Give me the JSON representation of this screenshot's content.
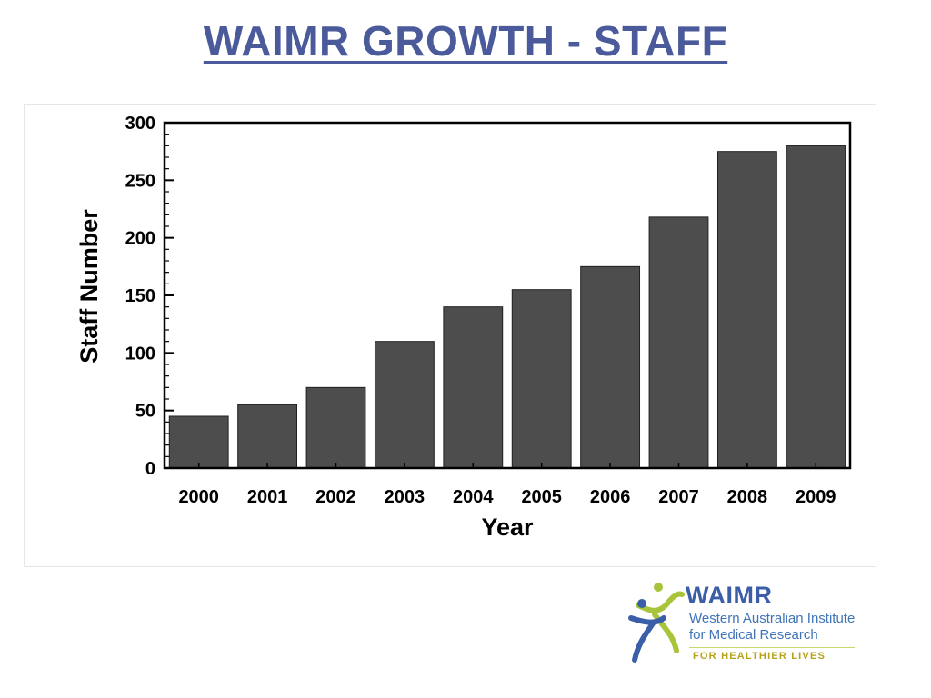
{
  "slide": {
    "title": "WAIMR GROWTH - STAFF"
  },
  "chart_data": {
    "type": "bar",
    "categories": [
      "2000",
      "2001",
      "2002",
      "2003",
      "2004",
      "2005",
      "2006",
      "2007",
      "2008",
      "2009"
    ],
    "values": [
      45,
      55,
      70,
      110,
      140,
      155,
      175,
      218,
      275,
      280
    ],
    "xlabel": "Year",
    "ylabel": "Staff Number",
    "ylim": [
      0,
      300
    ],
    "yticks": [
      0,
      50,
      100,
      150,
      200,
      250,
      300
    ],
    "grid": false,
    "legend": "none",
    "bar_color": "#4d4d4d"
  },
  "logo": {
    "name": "WAIMR",
    "line1": "Western Australian Institute",
    "line2": "for Medical Research",
    "tagline": "FOR HEALTHIER LIVES"
  },
  "colors": {
    "title": "#4a5a9a",
    "logo_blue": "#3b5ea8",
    "logo_green": "#a8c43a",
    "logo_gold": "#b8a11a"
  }
}
